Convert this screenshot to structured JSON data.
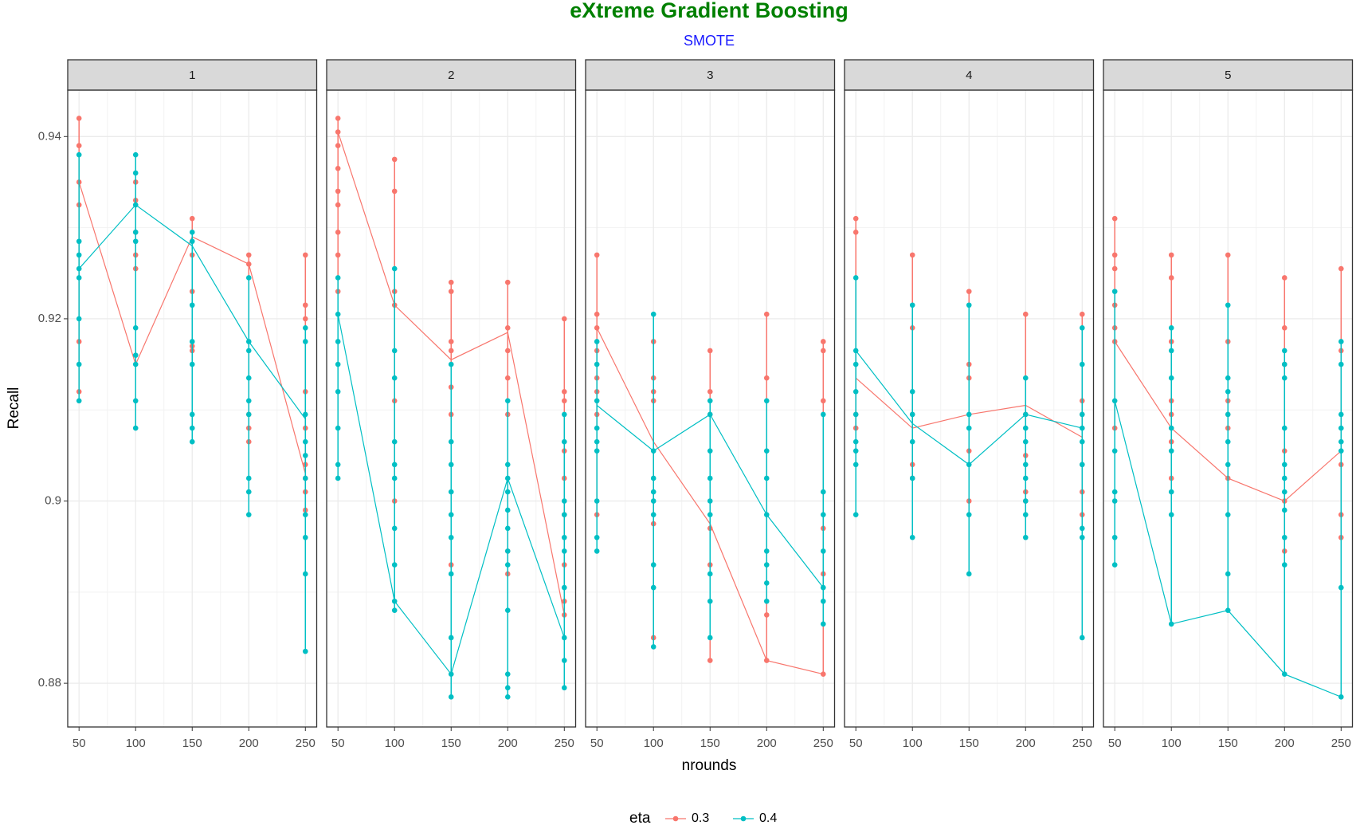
{
  "chart_data": {
    "type": "line",
    "title": "eXtreme Gradient Boosting",
    "subtitle": "SMOTE",
    "x_label": "nrounds",
    "y_label": "Recall",
    "legend_title": "eta",
    "xlim": [
      40,
      260
    ],
    "xticks": [
      50,
      100,
      150,
      200,
      250
    ],
    "ylim": [
      0.8752,
      0.9451
    ],
    "yticks": [
      0.88,
      0.9,
      0.92,
      0.94
    ],
    "grid": true,
    "x": [
      50,
      100,
      150,
      200,
      250
    ],
    "series_names": [
      "0.3",
      "0.4"
    ],
    "colors": [
      "#F8766D",
      "#00BFC4"
    ],
    "panels": [
      {
        "label": "1",
        "series": [
          {
            "values": [
              0.935,
              0.915,
              0.929,
              0.926,
              0.903
            ],
            "points": [
              [
                0.942,
                0.939,
                0.935,
                0.9325,
                0.9175,
                0.912
              ],
              [
                0.935,
                0.933,
                0.9295,
                0.9255,
                0.927
              ],
              [
                0.931,
                0.927,
                0.923,
                0.9165,
                0.917
              ],
              [
                0.927,
                0.926,
                0.9095,
                0.908,
                0.9065
              ],
              [
                0.927,
                0.9215,
                0.92,
                0.912,
                0.908,
                0.904,
                0.9025,
                0.901,
                0.899
              ]
            ]
          },
          {
            "values": [
              0.9255,
              0.9325,
              0.928,
              0.9175,
              0.909
            ],
            "points": [
              [
                0.938,
                0.9285,
                0.927,
                0.9255,
                0.9245,
                0.92,
                0.915,
                0.911
              ],
              [
                0.938,
                0.936,
                0.9325,
                0.9295,
                0.9285,
                0.919,
                0.916,
                0.915,
                0.911,
                0.908
              ],
              [
                0.9295,
                0.9285,
                0.9215,
                0.9175,
                0.915,
                0.9095,
                0.908,
                0.9065
              ],
              [
                0.9245,
                0.9175,
                0.9165,
                0.9135,
                0.911,
                0.9095,
                0.9025,
                0.901,
                0.8985
              ],
              [
                0.919,
                0.9175,
                0.9095,
                0.9065,
                0.905,
                0.9025,
                0.8985,
                0.896,
                0.892,
                0.8835
              ]
            ]
          }
        ]
      },
      {
        "label": "2",
        "series": [
          {
            "values": [
              0.9405,
              0.9215,
              0.9155,
              0.9185,
              0.8875
            ],
            "points": [
              [
                0.942,
                0.9405,
                0.939,
                0.9365,
                0.934,
                0.9325,
                0.9295,
                0.927,
                0.923
              ],
              [
                0.9375,
                0.934,
                0.923,
                0.9215,
                0.911,
                0.9
              ],
              [
                0.924,
                0.923,
                0.9175,
                0.9165,
                0.9125,
                0.9095,
                0.893
              ],
              [
                0.924,
                0.919,
                0.9165,
                0.9135,
                0.9095,
                0.8945,
                0.892
              ],
              [
                0.92,
                0.912,
                0.911,
                0.9055,
                0.9025,
                0.8985,
                0.893,
                0.889,
                0.8875
              ]
            ]
          },
          {
            "values": [
              0.9205,
              0.889,
              0.881,
              0.9025,
              0.885
            ],
            "points": [
              [
                0.9245,
                0.9205,
                0.9175,
                0.915,
                0.912,
                0.908,
                0.904,
                0.9025
              ],
              [
                0.9255,
                0.9165,
                0.9135,
                0.9065,
                0.904,
                0.9025,
                0.897,
                0.893,
                0.889,
                0.888
              ],
              [
                0.915,
                0.9065,
                0.904,
                0.901,
                0.8985,
                0.896,
                0.892,
                0.885,
                0.881,
                0.8785
              ],
              [
                0.911,
                0.904,
                0.9025,
                0.901,
                0.899,
                0.897,
                0.8945,
                0.893,
                0.888,
                0.881,
                0.8795,
                0.8785
              ],
              [
                0.9095,
                0.9065,
                0.9,
                0.8985,
                0.896,
                0.8945,
                0.8905,
                0.885,
                0.8825,
                0.8795
              ]
            ]
          }
        ]
      },
      {
        "label": "3",
        "series": [
          {
            "values": [
              0.919,
              0.9065,
              0.8975,
              0.8825,
              0.881
            ],
            "points": [
              [
                0.927,
                0.9205,
                0.919,
                0.9165,
                0.9135,
                0.912,
                0.9095,
                0.8985
              ],
              [
                0.9175,
                0.9135,
                0.912,
                0.911,
                0.8975,
                0.885
              ],
              [
                0.9165,
                0.912,
                0.9095,
                0.897,
                0.893,
                0.8825
              ],
              [
                0.9205,
                0.9135,
                0.8875,
                0.8825
              ],
              [
                0.9175,
                0.9165,
                0.911,
                0.897,
                0.892,
                0.881
              ]
            ]
          },
          {
            "values": [
              0.9105,
              0.9055,
              0.9095,
              0.8985,
              0.8905
            ],
            "points": [
              [
                0.9175,
                0.915,
                0.911,
                0.908,
                0.9065,
                0.9055,
                0.9,
                0.896,
                0.8945
              ],
              [
                0.9205,
                0.9055,
                0.9025,
                0.901,
                0.9,
                0.8985,
                0.893,
                0.8905,
                0.884
              ],
              [
                0.911,
                0.9095,
                0.9055,
                0.9025,
                0.9,
                0.8985,
                0.892,
                0.889,
                0.885
              ],
              [
                0.911,
                0.9055,
                0.9025,
                0.8985,
                0.8945,
                0.893,
                0.891,
                0.889
              ],
              [
                0.9095,
                0.901,
                0.8985,
                0.8945,
                0.8905,
                0.889,
                0.8865
              ]
            ]
          }
        ]
      },
      {
        "label": "4",
        "series": [
          {
            "values": [
              0.9135,
              0.908,
              0.9095,
              0.9105,
              0.907
            ],
            "points": [
              [
                0.931,
                0.9295,
                0.9095,
                0.908
              ],
              [
                0.927,
                0.919,
                0.9095,
                0.904,
                0.9025
              ],
              [
                0.923,
                0.915,
                0.9135,
                0.9055,
                0.9
              ],
              [
                0.9205,
                0.9095,
                0.905,
                0.901,
                0.9
              ],
              [
                0.9205,
                0.911,
                0.9095,
                0.904,
                0.901,
                0.8985
              ]
            ]
          },
          {
            "values": [
              0.9165,
              0.9085,
              0.904,
              0.9095,
              0.908
            ],
            "points": [
              [
                0.9245,
                0.9165,
                0.915,
                0.912,
                0.9095,
                0.9065,
                0.9055,
                0.904,
                0.8985
              ],
              [
                0.9215,
                0.912,
                0.9095,
                0.9065,
                0.9025,
                0.896
              ],
              [
                0.9215,
                0.9095,
                0.908,
                0.904,
                0.8985,
                0.892
              ],
              [
                0.9135,
                0.9095,
                0.908,
                0.9065,
                0.904,
                0.9025,
                0.9,
                0.8985,
                0.896
              ],
              [
                0.919,
                0.915,
                0.9095,
                0.908,
                0.9065,
                0.904,
                0.897,
                0.896,
                0.885
              ]
            ]
          }
        ]
      },
      {
        "label": "5",
        "series": [
          {
            "values": [
              0.9175,
              0.908,
              0.9025,
              0.9,
              0.9055
            ],
            "points": [
              [
                0.931,
                0.927,
                0.9255,
                0.9215,
                0.919,
                0.9175,
                0.908
              ],
              [
                0.927,
                0.9245,
                0.9175,
                0.911,
                0.9095,
                0.9065,
                0.9025
              ],
              [
                0.927,
                0.9175,
                0.911,
                0.9095,
                0.908,
                0.9025
              ],
              [
                0.9245,
                0.919,
                0.915,
                0.9055,
                0.9,
                0.8945
              ],
              [
                0.9255,
                0.9165,
                0.904,
                0.8985,
                0.896
              ]
            ]
          },
          {
            "values": [
              0.911,
              0.8865,
              0.888,
              0.881,
              0.8785
            ],
            "points": [
              [
                0.923,
                0.911,
                0.9055,
                0.901,
                0.9,
                0.896,
                0.893
              ],
              [
                0.919,
                0.9165,
                0.9135,
                0.908,
                0.9055,
                0.901,
                0.8985,
                0.8865
              ],
              [
                0.9215,
                0.9135,
                0.912,
                0.9095,
                0.9065,
                0.904,
                0.8985,
                0.892,
                0.888
              ],
              [
                0.9165,
                0.915,
                0.9135,
                0.908,
                0.904,
                0.9025,
                0.901,
                0.899,
                0.896,
                0.893,
                0.881
              ],
              [
                0.9175,
                0.915,
                0.9095,
                0.908,
                0.9065,
                0.9055,
                0.8905,
                0.8785
              ]
            ]
          }
        ]
      }
    ]
  }
}
